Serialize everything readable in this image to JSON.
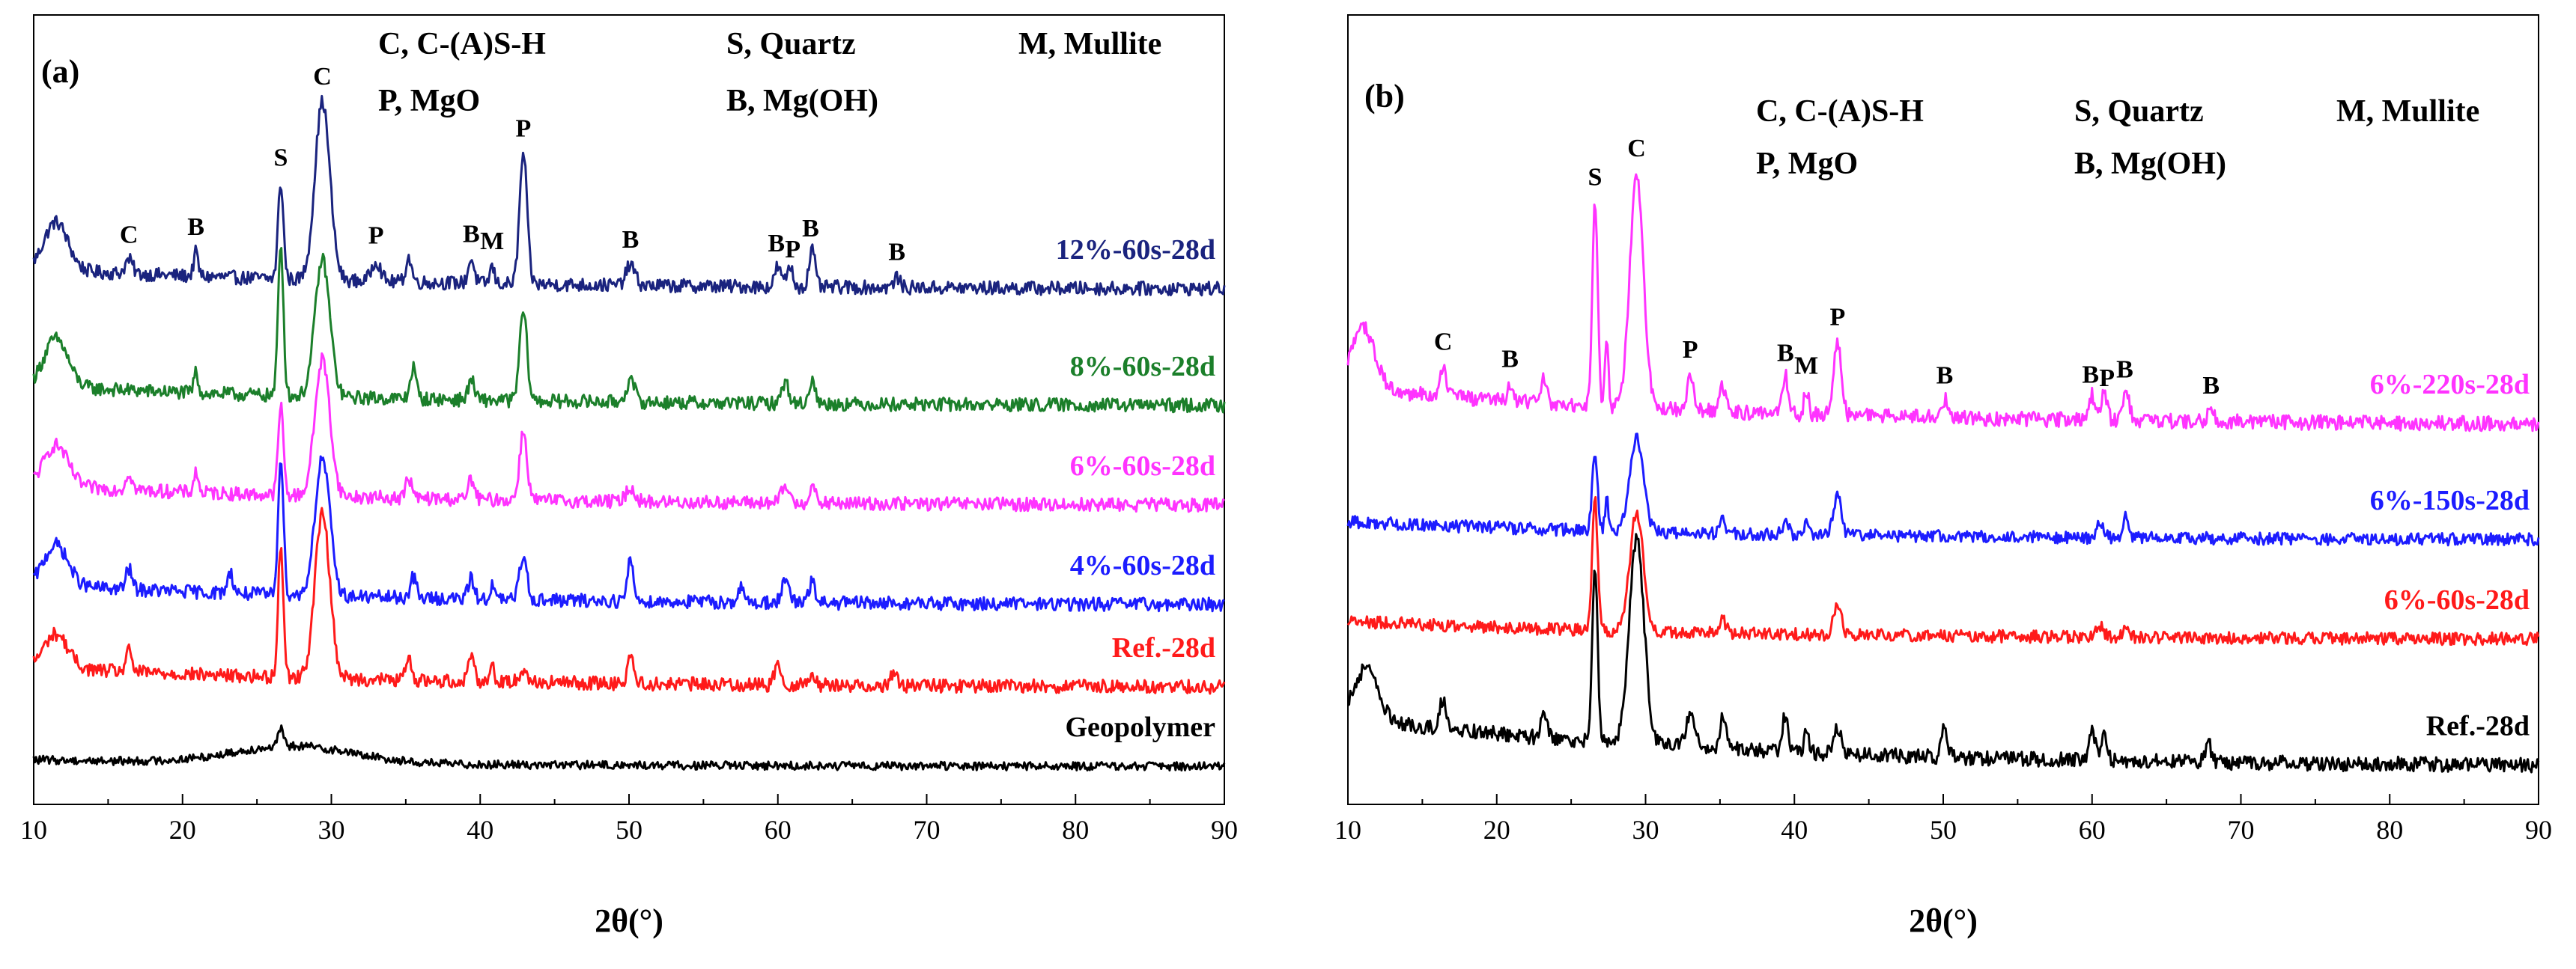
{
  "chart_data": [
    {
      "type": "line",
      "panel_label": "(a)",
      "xlabel": "2θ(°)",
      "ylabel": "",
      "xlim": [
        10,
        90
      ],
      "xticks": [
        10,
        20,
        30,
        40,
        50,
        60,
        70,
        80,
        90
      ],
      "yaxis": "stacked, offset intensity (arbitrary)",
      "legend_lines": [
        [
          "C, C-(A)S-H",
          "S, Quartz",
          "M, Mullite"
        ],
        [
          "P, MgO",
          "B, Mg(OH)",
          ""
        ]
      ],
      "legend_subscript": "2",
      "series": [
        {
          "name": "12%-60s-28d",
          "color": "#1a237e",
          "baseline": 6.2,
          "noise": 0.1,
          "slope": 0.3,
          "peaks": [
            [
              11.5,
              0.7,
              0.8
            ],
            [
              16.4,
              0.2,
              0.25
            ],
            [
              20.9,
              0.35,
              0.15
            ],
            [
              26.6,
              1.4,
              0.18
            ],
            [
              29.4,
              2.6,
              0.5
            ],
            [
              33.0,
              0.3,
              0.3
            ],
            [
              35.2,
              0.35,
              0.2
            ],
            [
              39.4,
              0.35,
              0.2
            ],
            [
              40.8,
              0.25,
              0.15
            ],
            [
              42.9,
              1.9,
              0.25
            ],
            [
              50.1,
              0.3,
              0.3
            ],
            [
              60.0,
              0.3,
              0.2
            ],
            [
              60.8,
              0.3,
              0.2
            ],
            [
              62.3,
              0.55,
              0.2
            ],
            [
              68.0,
              0.15,
              0.2
            ]
          ],
          "peak_labels": [
            [
              "C",
              16.4
            ],
            [
              "B",
              20.9
            ],
            [
              "S",
              26.6
            ],
            [
              "C",
              29.4
            ],
            [
              "P",
              33.0
            ],
            [
              "B",
              39.4
            ],
            [
              "M",
              40.8
            ],
            [
              "P",
              42.9
            ],
            [
              "B",
              50.1
            ],
            [
              "B",
              59.9
            ],
            [
              "P",
              61.0
            ],
            [
              "B",
              62.2
            ],
            [
              "B",
              68.0
            ]
          ]
        },
        {
          "name": "8%-60s-28d",
          "color": "#1b7f2a",
          "baseline": 4.5,
          "noise": 0.1,
          "slope": 0.3,
          "peaks": [
            [
              11.5,
              0.7,
              0.8
            ],
            [
              20.9,
              0.3,
              0.15
            ],
            [
              26.6,
              2.2,
              0.18
            ],
            [
              29.4,
              2.0,
              0.5
            ],
            [
              35.5,
              0.45,
              0.2
            ],
            [
              39.4,
              0.3,
              0.2
            ],
            [
              42.9,
              1.3,
              0.25
            ],
            [
              50.1,
              0.3,
              0.3
            ],
            [
              60.5,
              0.3,
              0.25
            ],
            [
              62.3,
              0.35,
              0.2
            ]
          ],
          "peak_labels": []
        },
        {
          "name": "6%-60s-28d",
          "color": "#ff33ff",
          "baseline": 3.05,
          "noise": 0.1,
          "slope": 0.3,
          "peaks": [
            [
              11.5,
              0.6,
              0.8
            ],
            [
              16.4,
              0.25,
              0.2
            ],
            [
              20.9,
              0.3,
              0.15
            ],
            [
              26.6,
              1.3,
              0.18
            ],
            [
              29.4,
              2.0,
              0.5
            ],
            [
              35.2,
              0.3,
              0.2
            ],
            [
              39.4,
              0.3,
              0.2
            ],
            [
              42.9,
              1.0,
              0.25
            ],
            [
              50.1,
              0.2,
              0.3
            ],
            [
              60.5,
              0.25,
              0.25
            ],
            [
              62.3,
              0.25,
              0.2
            ]
          ],
          "peak_labels": []
        },
        {
          "name": "4%-60s-28d",
          "color": "#1c1cff",
          "baseline": 1.6,
          "noise": 0.1,
          "slope": 0.3,
          "peaks": [
            [
              11.5,
              0.6,
              0.8
            ],
            [
              16.4,
              0.3,
              0.2
            ],
            [
              23.2,
              0.3,
              0.2
            ],
            [
              26.6,
              2.0,
              0.18
            ],
            [
              29.4,
              2.0,
              0.5
            ],
            [
              35.5,
              0.3,
              0.2
            ],
            [
              39.4,
              0.3,
              0.2
            ],
            [
              40.8,
              0.2,
              0.15
            ],
            [
              42.9,
              0.65,
              0.25
            ],
            [
              50.1,
              0.6,
              0.2
            ],
            [
              57.5,
              0.2,
              0.2
            ],
            [
              60.5,
              0.3,
              0.25
            ],
            [
              62.3,
              0.3,
              0.2
            ]
          ],
          "peak_labels": []
        },
        {
          "name": "Ref.-28d",
          "color": "#ff1a1a",
          "baseline": 0.4,
          "noise": 0.1,
          "slope": 0.3,
          "peaks": [
            [
              11.5,
              0.5,
              0.8
            ],
            [
              16.4,
              0.3,
              0.2
            ],
            [
              26.6,
              1.9,
              0.18
            ],
            [
              29.4,
              2.4,
              0.5
            ],
            [
              35.2,
              0.3,
              0.2
            ],
            [
              39.4,
              0.4,
              0.2
            ],
            [
              40.8,
              0.25,
              0.15
            ],
            [
              42.9,
              0.2,
              0.25
            ],
            [
              50.1,
              0.45,
              0.2
            ],
            [
              60.0,
              0.35,
              0.2
            ],
            [
              62.3,
              0.2,
              0.2
            ],
            [
              67.8,
              0.2,
              0.2
            ]
          ],
          "peak_labels": []
        },
        {
          "name": "Geopolymer",
          "color": "#000000",
          "baseline": -0.75,
          "noise": 0.06,
          "slope": 0.1,
          "peaks": [
            [
              27.5,
              0.25,
              4.0
            ],
            [
              26.6,
              0.25,
              0.18
            ]
          ],
          "peak_labels": []
        }
      ]
    },
    {
      "type": "line",
      "panel_label": "(b)",
      "xlabel": "2θ(°)",
      "ylabel": "",
      "xlim": [
        10,
        90
      ],
      "xticks": [
        10,
        20,
        30,
        40,
        50,
        60,
        70,
        80,
        90
      ],
      "yaxis": "stacked, offset intensity (arbitrary)",
      "legend_lines": [
        [
          "C, C-(A)S-H",
          "S, Quartz",
          "M, Mullite"
        ],
        [
          "P, MgO",
          "B, Mg(OH)",
          ""
        ]
      ],
      "legend_subscript": "2",
      "series": [
        {
          "name": "6%-220s-28d",
          "color": "#ff33ff",
          "baseline": 4.2,
          "noise": 0.12,
          "slope": 0.6,
          "peaks": [
            [
              11.0,
              1.0,
              0.8
            ],
            [
              16.4,
              0.5,
              0.2
            ],
            [
              20.9,
              0.3,
              0.15
            ],
            [
              23.2,
              0.4,
              0.2
            ],
            [
              26.6,
              3.3,
              0.18
            ],
            [
              27.4,
              1.0,
              0.12
            ],
            [
              29.4,
              3.8,
              0.45
            ],
            [
              33.0,
              0.6,
              0.2
            ],
            [
              35.2,
              0.4,
              0.2
            ],
            [
              39.4,
              0.6,
              0.2
            ],
            [
              40.8,
              0.4,
              0.15
            ],
            [
              42.9,
              1.2,
              0.25
            ],
            [
              50.1,
              0.3,
              0.3
            ],
            [
              60.0,
              0.4,
              0.2
            ],
            [
              60.8,
              0.5,
              0.2
            ],
            [
              62.3,
              0.5,
              0.2
            ],
            [
              68.0,
              0.2,
              0.2
            ]
          ],
          "peak_labels": [
            [
              "C",
              16.4
            ],
            [
              "B",
              20.9
            ],
            [
              "S",
              26.6
            ],
            [
              "C",
              29.4
            ],
            [
              "P",
              33.0
            ],
            [
              "B",
              39.4
            ],
            [
              "M",
              40.8
            ],
            [
              "P",
              42.9
            ],
            [
              "B",
              50.1
            ],
            [
              "B",
              59.9
            ],
            [
              "P",
              61.0
            ],
            [
              "B",
              62.2
            ],
            [
              "B",
              68.0
            ]
          ]
        },
        {
          "name": "6%-150s-28d",
          "color": "#1c1cff",
          "baseline": 2.35,
          "noise": 0.1,
          "slope": 0.3,
          "peaks": [
            [
              26.6,
              1.2,
              0.18
            ],
            [
              27.4,
              0.5,
              0.12
            ],
            [
              29.4,
              1.5,
              0.45
            ],
            [
              35.2,
              0.2,
              0.2
            ],
            [
              39.4,
              0.2,
              0.2
            ],
            [
              40.8,
              0.2,
              0.15
            ],
            [
              42.9,
              0.7,
              0.25
            ],
            [
              60.5,
              0.2,
              0.25
            ],
            [
              62.3,
              0.35,
              0.2
            ]
          ],
          "peak_labels": []
        },
        {
          "name": "6%-60s-28d",
          "color": "#ff1a1a",
          "baseline": 0.75,
          "noise": 0.1,
          "slope": 0.3,
          "peaks": [
            [
              26.6,
              2.1,
              0.18
            ],
            [
              29.4,
              1.9,
              0.45
            ],
            [
              35.2,
              0.2,
              0.2
            ],
            [
              42.9,
              0.5,
              0.25
            ],
            [
              60.5,
              0.2,
              0.25
            ],
            [
              62.3,
              0.2,
              0.2
            ]
          ],
          "peak_labels": []
        },
        {
          "name": "Ref.-28d",
          "color": "#000000",
          "baseline": -1.3,
          "noise": 0.12,
          "slope": 0.8,
          "peaks": [
            [
              11.2,
              0.8,
              0.8
            ],
            [
              16.4,
              0.5,
              0.2
            ],
            [
              23.2,
              0.4,
              0.2
            ],
            [
              26.6,
              2.8,
              0.18
            ],
            [
              29.4,
              3.3,
              0.5
            ],
            [
              33.0,
              0.5,
              0.3
            ],
            [
              35.2,
              0.5,
              0.2
            ],
            [
              39.4,
              0.6,
              0.2
            ],
            [
              40.8,
              0.4,
              0.15
            ],
            [
              42.9,
              0.4,
              0.25
            ],
            [
              50.1,
              0.5,
              0.2
            ],
            [
              60.0,
              0.5,
              0.2
            ],
            [
              60.8,
              0.4,
              0.2
            ],
            [
              67.8,
              0.3,
              0.2
            ]
          ],
          "peak_labels": []
        }
      ]
    }
  ]
}
